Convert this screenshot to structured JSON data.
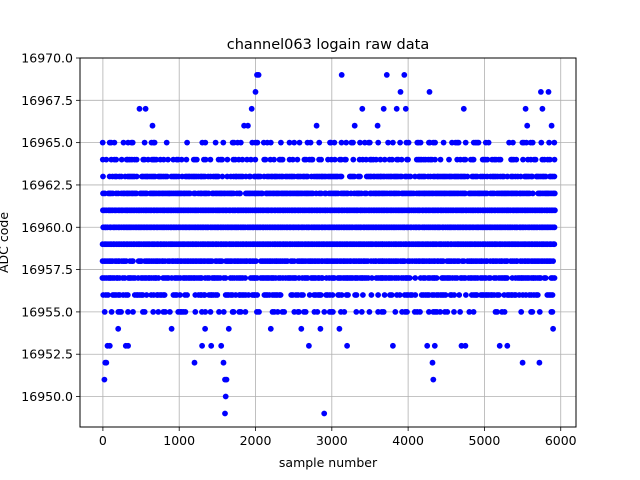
{
  "chart_data": {
    "type": "scatter",
    "title": "channel063 logain raw data",
    "xlabel": "sample number",
    "ylabel": "ADC code",
    "xlim": [
      -300,
      6200
    ],
    "ylim": [
      16948.2,
      16970.0
    ],
    "xticks": [
      0,
      1000,
      2000,
      3000,
      4000,
      5000,
      6000
    ],
    "xtick_labels": [
      "0",
      "1000",
      "2000",
      "3000",
      "4000",
      "5000",
      "6000"
    ],
    "yticks": [
      16950.0,
      16952.5,
      16955.0,
      16957.5,
      16960.0,
      16962.5,
      16965.0,
      16967.5,
      16970.0
    ],
    "ytick_labels": [
      "16950.0",
      "16952.5",
      "16955.0",
      "16957.5",
      "16960.0",
      "16962.5",
      "16965.0",
      "16967.5",
      "16970.0"
    ],
    "grid": true,
    "marker_color": "#0000ff",
    "series": [
      {
        "name": "",
        "x_range": [
          0,
          5925
        ],
        "dense_levels": [
          16955,
          16956,
          16957,
          16958,
          16959,
          16960,
          16961,
          16962,
          16963,
          16964,
          16965
        ],
        "sparse_points": [
          [
            20,
            16951
          ],
          [
            30,
            16952
          ],
          [
            45,
            16952
          ],
          [
            60,
            16953
          ],
          [
            90,
            16953
          ],
          [
            200,
            16954
          ],
          [
            300,
            16953
          ],
          [
            330,
            16953
          ],
          [
            480,
            16967
          ],
          [
            560,
            16967
          ],
          [
            650,
            16966
          ],
          [
            900,
            16954
          ],
          [
            1200,
            16952
          ],
          [
            1300,
            16953
          ],
          [
            1340,
            16954
          ],
          [
            1420,
            16953
          ],
          [
            1550,
            16953
          ],
          [
            1580,
            16952
          ],
          [
            1600,
            16951
          ],
          [
            1610,
            16950
          ],
          [
            1620,
            16951
          ],
          [
            1600,
            16949
          ],
          [
            1650,
            16954
          ],
          [
            1850,
            16966
          ],
          [
            1900,
            16966
          ],
          [
            1950,
            16967
          ],
          [
            2000,
            16968
          ],
          [
            2020,
            16969
          ],
          [
            2040,
            16969
          ],
          [
            2200,
            16954
          ],
          [
            2600,
            16954
          ],
          [
            2700,
            16953
          ],
          [
            2800,
            16966
          ],
          [
            2850,
            16954
          ],
          [
            2900,
            16949
          ],
          [
            3100,
            16954
          ],
          [
            3130,
            16969
          ],
          [
            3200,
            16953
          ],
          [
            3300,
            16966
          ],
          [
            3400,
            16967
          ],
          [
            3600,
            16966
          ],
          [
            3680,
            16967
          ],
          [
            3720,
            16969
          ],
          [
            3800,
            16953
          ],
          [
            3850,
            16967
          ],
          [
            3900,
            16968
          ],
          [
            3950,
            16969
          ],
          [
            3970,
            16967
          ],
          [
            4250,
            16953
          ],
          [
            4280,
            16968
          ],
          [
            4320,
            16952
          ],
          [
            4330,
            16951
          ],
          [
            4350,
            16953
          ],
          [
            4700,
            16953
          ],
          [
            4730,
            16967
          ],
          [
            4750,
            16953
          ],
          [
            5200,
            16953
          ],
          [
            5300,
            16953
          ],
          [
            5500,
            16952
          ],
          [
            5540,
            16967
          ],
          [
            5560,
            16966
          ],
          [
            5720,
            16952
          ],
          [
            5740,
            16968
          ],
          [
            5760,
            16967
          ],
          [
            5840,
            16968
          ],
          [
            5880,
            16966
          ],
          [
            5900,
            16954
          ]
        ]
      }
    ]
  }
}
